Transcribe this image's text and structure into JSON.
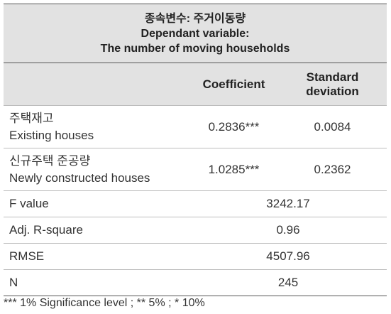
{
  "header": {
    "title_lines": [
      "종속변수: 주거이동량",
      "Dependant variable:",
      "The number of moving households"
    ]
  },
  "table": {
    "columns": [
      "Coefficient",
      "Standard deviation"
    ],
    "rows": [
      {
        "label_ko": "주택재고",
        "label": "Existing houses",
        "coefficient": "0.2836***",
        "sd": "0.0084"
      },
      {
        "label_ko": "신규주택 준공량",
        "label": "Newly constructed houses",
        "coefficient": "1.0285***",
        "sd": "0.2362"
      }
    ],
    "stats": [
      {
        "label": "F value",
        "value": "3242.17"
      },
      {
        "label": "Adj. R-square",
        "value": "0.96"
      },
      {
        "label": "RMSE",
        "value": "4507.96"
      },
      {
        "label": "N",
        "value": "245"
      }
    ]
  },
  "footnote": "*** 1% Significance level ; ** 5% ; * 10%"
}
